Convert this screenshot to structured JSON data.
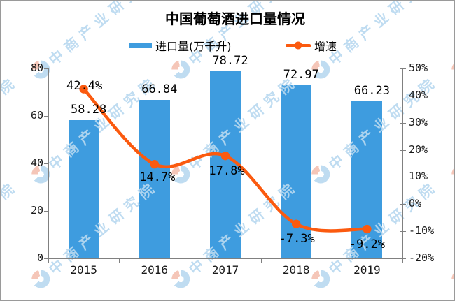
{
  "title": "中国葡萄酒进口量情况",
  "legend": [
    {
      "label": "进口量(万千升)",
      "type": "bar",
      "color": "#3E9CDF"
    },
    {
      "label": "增速",
      "type": "line",
      "color": "#FB5A0F"
    }
  ],
  "watermark": {
    "text": "中商产业研究院"
  },
  "chart_data": {
    "type": "bar+line",
    "title": "中国葡萄酒进口量情况",
    "categories": [
      "2015",
      "2016",
      "2017",
      "2018",
      "2019"
    ],
    "series": [
      {
        "name": "进口量(万千升)",
        "type": "bar",
        "axis": "left",
        "values": [
          58.28,
          66.84,
          78.72,
          72.97,
          66.23
        ],
        "labels": [
          "58.28",
          "66.84",
          "78.72",
          "72.97",
          "66.23"
        ],
        "color": "#3E9CDF"
      },
      {
        "name": "增速",
        "type": "line",
        "axis": "right",
        "values": [
          42.4,
          14.7,
          17.8,
          -7.3,
          -9.2
        ],
        "labels": [
          "42.4%",
          "14.7%",
          "17.8%",
          "-7.3%",
          "-9.2%"
        ],
        "color": "#FB5A0F"
      }
    ],
    "left_axis": {
      "min": 0,
      "max": 80,
      "ticks": [
        "80",
        "60",
        "40",
        "20",
        "0"
      ]
    },
    "right_axis": {
      "min": -20,
      "max": 50,
      "ticks": [
        "50%",
        "40%",
        "30%",
        "20%",
        "10%",
        "0%",
        "-10%",
        "-20%"
      ]
    },
    "grid": false,
    "legend_position": "top"
  }
}
